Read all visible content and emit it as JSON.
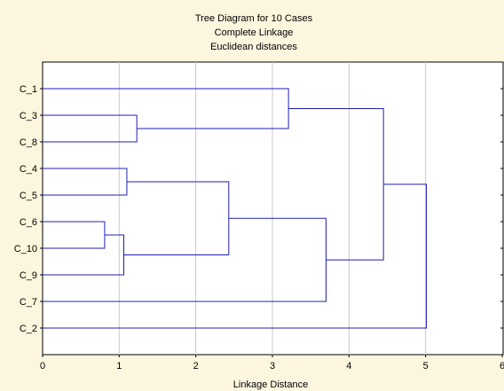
{
  "chart_data": {
    "type": "dendrogram",
    "title": [
      "Tree Diagram for 10 Cases",
      "Complete Linkage",
      "Euclidean distances"
    ],
    "xlabel": "Linkage Distance",
    "xlim": [
      0,
      6
    ],
    "xticks": [
      "0",
      "1",
      "2",
      "3",
      "4",
      "5",
      "6"
    ],
    "leaves": [
      "C_1",
      "C_3",
      "C_8",
      "C_4",
      "C_5",
      "C_6",
      "C_10",
      "C_9",
      "C_7",
      "C_2"
    ],
    "merges": [
      {
        "left": "C_6",
        "right": "C_10",
        "height": 0.81
      },
      {
        "left": "C_4",
        "right": "C_5",
        "height": 1.1
      },
      {
        "left": "C_6,C_10",
        "right": "C_9",
        "height": 1.06
      },
      {
        "left": "C_3",
        "right": "C_8",
        "height": 1.23
      },
      {
        "left": "C_4,C_5",
        "right": "C_6,C_10,C_9",
        "height": 2.43
      },
      {
        "left": "C_1",
        "right": "C_3,C_8",
        "height": 3.21
      },
      {
        "left": "C_4..C_9",
        "right": "C_7",
        "height": 3.7
      },
      {
        "left": "C_1,C_3,C_8",
        "right": "C_4..C_7",
        "height": 4.45
      },
      {
        "left": "C_1..C_7",
        "right": "C_2",
        "height": 5.01
      }
    ],
    "grid": true,
    "colors": {
      "line": "#1f1fb4",
      "background": "#fdf6de",
      "plot_bg": "#ffffff",
      "grid": "#c8c8c8"
    }
  }
}
